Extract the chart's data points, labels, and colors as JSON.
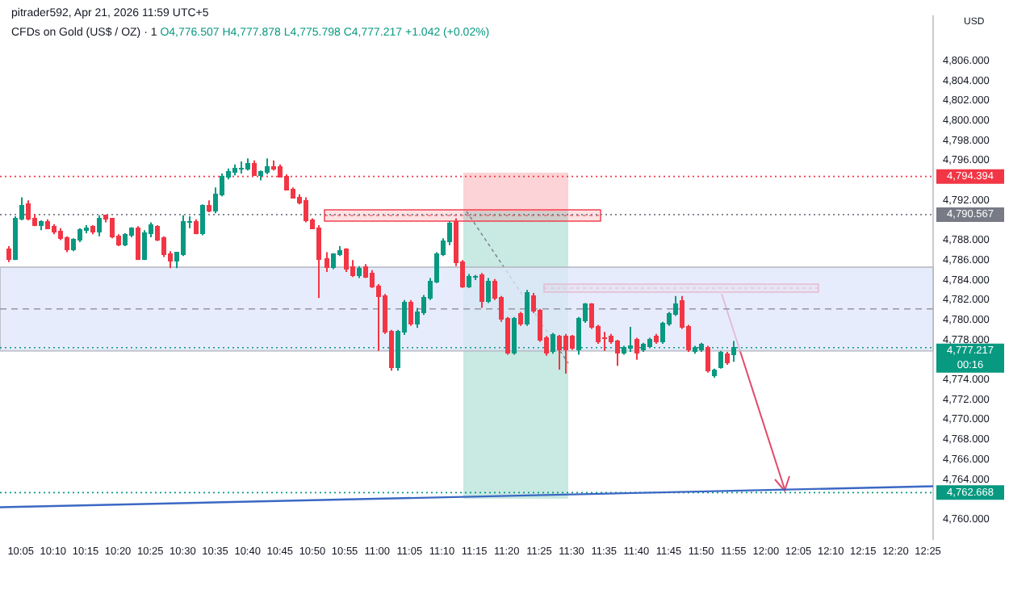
{
  "chart_data": {
    "type": "candlestick",
    "title": "CFDs on Gold (US$ / OZ) · 1",
    "subtitle": "pitrader592, Apr 21, 2026 11:59 UTC+5",
    "ylabel": "USD",
    "annotations": [
      "O4,776.507 H4,777.878 L4,775.798 C4,777.217 +1.042 (+0.02%)"
    ],
    "x": [
      10.05,
      10.0667,
      10.0833,
      10.1,
      10.1167,
      10.1333,
      10.15,
      10.1667,
      10.1833,
      10.2,
      10.2167,
      10.2333,
      10.25,
      10.2667,
      10.2833,
      10.3,
      10.3167,
      10.3333,
      10.35,
      10.3667,
      10.3833,
      10.4,
      10.4167,
      10.4333,
      10.45,
      10.4667,
      10.4833,
      10.5,
      10.5167,
      10.5333,
      10.55,
      10.5667,
      10.5833,
      10.6,
      10.6167,
      10.6333,
      10.65,
      10.6667,
      10.6833,
      10.7,
      10.7167,
      10.7333,
      10.75,
      10.7667,
      10.7833,
      10.8,
      10.8167,
      10.8333,
      10.85,
      10.8667,
      10.8833,
      10.9,
      10.9167,
      10.9333,
      10.95,
      10.9667,
      10.9833,
      11,
      11.0167,
      11.0333,
      11.05,
      11.0667,
      11.0833,
      11.1,
      11.1167,
      11.1333,
      11.15,
      11.1667,
      11.1833,
      11.2,
      11.2167,
      11.2333,
      11.25,
      11.2667,
      11.2833,
      11.3,
      11.3167,
      11.3333,
      11.35,
      11.3667,
      11.3833,
      11.4,
      11.4167,
      11.4333,
      11.45,
      11.4667,
      11.4833,
      11.5,
      11.5167,
      11.5333,
      11.55,
      11.5667,
      11.5833,
      11.6,
      11.6167,
      11.6333,
      11.65,
      11.6667,
      11.6833,
      11.7,
      11.7167,
      11.7333,
      11.75,
      11.7667,
      11.7833,
      11.8,
      11.8167,
      11.8333,
      11.85,
      11.8667,
      11.8833,
      11.9,
      11.9167
    ],
    "ohlc": [
      [
        4787.1,
        4787.4,
        4785.8,
        4786.1
      ],
      [
        4786.1,
        4790.4,
        4786.0,
        4790.2
      ],
      [
        4790.2,
        4792.3,
        4790.0,
        4791.5
      ],
      [
        4791.6,
        4792.0,
        4790.0,
        4790.2
      ],
      [
        4790.2,
        4790.6,
        4789.4,
        4789.5
      ],
      [
        4789.5,
        4790.0,
        4789.0,
        4789.9
      ],
      [
        4789.9,
        4790.1,
        4789.1,
        4789.2
      ],
      [
        4789.3,
        4789.6,
        4788.6,
        4788.9
      ],
      [
        4788.9,
        4789.2,
        4788.0,
        4788.2
      ],
      [
        4788.2,
        4788.4,
        4786.8,
        4787.0
      ],
      [
        4787.0,
        4788.2,
        4786.9,
        4788.0
      ],
      [
        4788.0,
        4789.2,
        4787.8,
        4789.0
      ],
      [
        4789.0,
        4789.5,
        4788.7,
        4789.2
      ],
      [
        4789.4,
        4789.5,
        4788.6,
        4788.8
      ],
      [
        4788.8,
        4790.5,
        4788.4,
        4790.2
      ],
      [
        4790.4,
        4790.5,
        4789.8,
        4790.1
      ],
      [
        4790.1,
        4790.2,
        4788.2,
        4788.4
      ],
      [
        4788.4,
        4788.6,
        4787.4,
        4787.6
      ],
      [
        4787.6,
        4788.7,
        4787.4,
        4788.5
      ],
      [
        4788.5,
        4789.3,
        4788.3,
        4789.2
      ],
      [
        4789.2,
        4789.4,
        4786.0,
        4786.1
      ],
      [
        4786.1,
        4789.0,
        4786.0,
        4788.7
      ],
      [
        4788.7,
        4789.8,
        4788.3,
        4789.5
      ],
      [
        4789.3,
        4789.5,
        4787.9,
        4788.1
      ],
      [
        4788.2,
        4788.4,
        4786.3,
        4786.6
      ],
      [
        4786.6,
        4786.9,
        4785.2,
        4786.0
      ],
      [
        4786.0,
        4786.8,
        4785.2,
        4786.7
      ],
      [
        4786.6,
        4790.5,
        4786.4,
        4789.9
      ],
      [
        4789.8,
        4790.4,
        4789.2,
        4789.9
      ],
      [
        4789.9,
        4790.1,
        4788.6,
        4788.7
      ],
      [
        4788.7,
        4791.6,
        4788.5,
        4791.5
      ],
      [
        4791.5,
        4792.0,
        4790.8,
        4790.9
      ],
      [
        4791.0,
        4793.3,
        4790.7,
        4792.6
      ],
      [
        4792.6,
        4794.7,
        4792.4,
        4794.4
      ],
      [
        4794.4,
        4795.2,
        4794.1,
        4794.8
      ],
      [
        4794.8,
        4795.6,
        4794.5,
        4795.1
      ],
      [
        4795.1,
        4795.9,
        4794.7,
        4795.2
      ],
      [
        4795.2,
        4796.2,
        4795.0,
        4795.7
      ],
      [
        4795.6,
        4796.0,
        4794.5,
        4794.6
      ],
      [
        4794.6,
        4795.0,
        4794.0,
        4794.8
      ],
      [
        4794.8,
        4796.2,
        4794.6,
        4795.3
      ],
      [
        4795.3,
        4796.0,
        4795.0,
        4795.2
      ],
      [
        4795.3,
        4795.6,
        4794.3,
        4794.4
      ],
      [
        4794.4,
        4794.6,
        4793.0,
        4793.1
      ],
      [
        4793.1,
        4793.3,
        4792.2,
        4792.3
      ],
      [
        4792.3,
        4792.6,
        4791.6,
        4791.8
      ],
      [
        4792.0,
        4792.3,
        4789.8,
        4790.0
      ],
      [
        4790.0,
        4790.2,
        4789.1,
        4789.2
      ],
      [
        4789.2,
        4789.5,
        4782.2,
        4786.1
      ],
      [
        4786.1,
        4786.8,
        4784.8,
        4785.3
      ],
      [
        4785.3,
        4786.7,
        4785.1,
        4786.6
      ],
      [
        4786.6,
        4787.4,
        4786.4,
        4786.9
      ],
      [
        4787.0,
        4787.2,
        4784.8,
        4785.2
      ],
      [
        4785.3,
        4786.0,
        4784.3,
        4784.5
      ],
      [
        4784.5,
        4785.4,
        4784.2,
        4785.2
      ],
      [
        4785.3,
        4785.6,
        4784.2,
        4784.4
      ],
      [
        4784.7,
        4785.0,
        4783.2,
        4783.4
      ],
      [
        4783.4,
        4783.6,
        4776.9,
        4782.4
      ],
      [
        4782.4,
        4782.6,
        4778.6,
        4778.8
      ],
      [
        4778.8,
        4779.0,
        4774.9,
        4775.2
      ],
      [
        4775.2,
        4779.0,
        4774.9,
        4778.8
      ],
      [
        4778.8,
        4782.0,
        4778.5,
        4781.7
      ],
      [
        4781.7,
        4782.0,
        4779.4,
        4779.6
      ],
      [
        4779.6,
        4781.2,
        4779.2,
        4780.7
      ],
      [
        4780.7,
        4782.5,
        4780.5,
        4782.2
      ],
      [
        4782.2,
        4784.2,
        4782.0,
        4783.9
      ],
      [
        4783.9,
        4786.8,
        4783.7,
        4786.6
      ],
      [
        4786.6,
        4788.2,
        4786.4,
        4787.9
      ],
      [
        4787.9,
        4789.9,
        4787.5,
        4789.7
      ],
      [
        4789.9,
        4790.2,
        4785.4,
        4785.8
      ],
      [
        4785.8,
        4786.0,
        4783.2,
        4783.4
      ],
      [
        4783.4,
        4784.6,
        4783.2,
        4784.3
      ],
      [
        4784.3,
        4784.5,
        4784.0,
        4784.4
      ],
      [
        4784.5,
        4784.7,
        4781.2,
        4781.9
      ],
      [
        4781.9,
        4784.2,
        4781.7,
        4783.9
      ],
      [
        4783.9,
        4784.1,
        4782.0,
        4782.2
      ],
      [
        4782.2,
        4782.4,
        4779.8,
        4780.1
      ],
      [
        4780.1,
        4780.3,
        4776.5,
        4776.7
      ],
      [
        4776.7,
        4780.3,
        4776.5,
        4780.1
      ],
      [
        4780.6,
        4780.8,
        4779.4,
        4779.6
      ],
      [
        4779.6,
        4783.0,
        4779.4,
        4782.7
      ],
      [
        4782.4,
        4782.7,
        4780.7,
        4780.9
      ],
      [
        4780.9,
        4781.1,
        4777.8,
        4778.0
      ],
      [
        4778.1,
        4778.4,
        4776.4,
        4776.7
      ],
      [
        4776.8,
        4778.7,
        4776.6,
        4778.5
      ],
      [
        4778.3,
        4778.5,
        4775.0,
        4777.0
      ],
      [
        4778.3,
        4778.6,
        4774.6,
        4777.0
      ],
      [
        4778.3,
        4778.5,
        4777.0,
        4777.2
      ],
      [
        4777.0,
        4780.3,
        4776.5,
        4780.1
      ],
      [
        4779.9,
        4781.7,
        4779.7,
        4781.5
      ],
      [
        4781.5,
        4781.7,
        4779.1,
        4779.3
      ],
      [
        4779.3,
        4779.5,
        4777.6,
        4777.8
      ],
      [
        4778.2,
        4778.8,
        4776.9,
        4778.1
      ],
      [
        4778.4,
        4778.6,
        4777.6,
        4777.8
      ],
      [
        4777.8,
        4778.0,
        4775.4,
        4776.7
      ],
      [
        4776.7,
        4777.4,
        4776.5,
        4777.2
      ],
      [
        4777.2,
        4779.3,
        4776.8,
        4777.4
      ],
      [
        4778.0,
        4778.2,
        4776.0,
        4776.7
      ],
      [
        4777.0,
        4777.7,
        4776.8,
        4777.5
      ],
      [
        4777.4,
        4778.2,
        4777.2,
        4778.0
      ],
      [
        4778.4,
        4778.6,
        4777.6,
        4777.8
      ],
      [
        4777.8,
        4779.8,
        4777.6,
        4779.6
      ],
      [
        4779.6,
        4780.8,
        4779.4,
        4780.6
      ],
      [
        4780.6,
        4782.4,
        4780.4,
        4781.5
      ],
      [
        4781.9,
        4782.4,
        4779.1,
        4779.3
      ],
      [
        4779.3,
        4779.5,
        4776.8,
        4777.0
      ],
      [
        4776.8,
        4777.4,
        4776.6,
        4777.2
      ],
      [
        4777.0,
        4777.7,
        4776.8,
        4777.5
      ],
      [
        4777.2,
        4777.4,
        4774.7,
        4774.9
      ],
      [
        4774.4,
        4775.1,
        4774.2,
        4774.9
      ],
      [
        4775.3,
        4776.9,
        4775.1,
        4776.7
      ],
      [
        4776.5,
        4776.8,
        4775.5,
        4775.7
      ],
      [
        4776.507,
        4777.878,
        4775.798,
        4777.217
      ]
    ],
    "series": [
      {
        "type": "line",
        "color": "#3b68c4",
        "x": [
          10.03,
          12.43
        ],
        "values": [
          4761.2,
          4763.3
        ]
      }
    ],
    "xlim": [
      10.03,
      12.43
    ],
    "xticks": [
      {
        "value": 10.0833,
        "label": "10:05"
      },
      {
        "value": 10.1667,
        "label": "10:10"
      },
      {
        "value": 10.25,
        "label": "10:15"
      },
      {
        "value": 10.3333,
        "label": "10:20"
      },
      {
        "value": 10.4167,
        "label": "10:25"
      },
      {
        "value": 10.5,
        "label": "10:30"
      },
      {
        "value": 10.5833,
        "label": "10:35"
      },
      {
        "value": 10.6667,
        "label": "10:40"
      },
      {
        "value": 10.75,
        "label": "10:45"
      },
      {
        "value": 10.8333,
        "label": "10:50"
      },
      {
        "value": 10.9167,
        "label": "10:55"
      },
      {
        "value": 11,
        "label": "11:00"
      },
      {
        "value": 11.0833,
        "label": "11:05"
      },
      {
        "value": 11.1667,
        "label": "11:10"
      },
      {
        "value": 11.25,
        "label": "11:15"
      },
      {
        "value": 11.3333,
        "label": "11:20"
      },
      {
        "value": 11.4167,
        "label": "11:25"
      },
      {
        "value": 11.5,
        "label": "11:30"
      },
      {
        "value": 11.5833,
        "label": "11:35"
      },
      {
        "value": 11.6667,
        "label": "11:40"
      },
      {
        "value": 11.75,
        "label": "11:45"
      },
      {
        "value": 11.8333,
        "label": "11:50"
      },
      {
        "value": 11.9167,
        "label": "11:55"
      },
      {
        "value": 12,
        "label": "12:00"
      },
      {
        "value": 12.0833,
        "label": "12:05"
      },
      {
        "value": 12.1667,
        "label": "12:10"
      },
      {
        "value": 12.25,
        "label": "12:15"
      },
      {
        "value": 12.3333,
        "label": "12:20"
      },
      {
        "value": 12.4167,
        "label": "12:25"
      }
    ],
    "ylim": [
      4758,
      4810.5
    ],
    "yticks": [
      {
        "value": 4760,
        "label": "4,760.000"
      },
      {
        "value": 4764,
        "label": "4,764.000"
      },
      {
        "value": 4766,
        "label": "4,766.000"
      },
      {
        "value": 4768,
        "label": "4,768.000"
      },
      {
        "value": 4770,
        "label": "4,770.000"
      },
      {
        "value": 4772,
        "label": "4,772.000"
      },
      {
        "value": 4774,
        "label": "4,774.000"
      },
      {
        "value": 4778,
        "label": "4,778.000"
      },
      {
        "value": 4780,
        "label": "4,780.000"
      },
      {
        "value": 4782,
        "label": "4,782.000"
      },
      {
        "value": 4784,
        "label": "4,784.000"
      },
      {
        "value": 4786,
        "label": "4,786.000"
      },
      {
        "value": 4788,
        "label": "4,788.000"
      },
      {
        "value": 4792,
        "label": "4,792.000"
      },
      {
        "value": 4796,
        "label": "4,796.000"
      },
      {
        "value": 4798,
        "label": "4,798.000"
      },
      {
        "value": 4800,
        "label": "4,800.000"
      },
      {
        "value": 4802,
        "label": "4,802.000"
      },
      {
        "value": 4804,
        "label": "4,804.000"
      },
      {
        "value": 4806,
        "label": "4,806.000"
      }
    ],
    "bands": [
      {
        "axis": "y",
        "from": 4776.9,
        "to": 4785.3,
        "color": "#dfe6fb"
      }
    ],
    "ref_lines": [
      {
        "axis": "y",
        "value": 4781.1,
        "color": "#9598a1",
        "line_style": "dashed"
      },
      {
        "axis": "y",
        "value": 4794.394,
        "label": "4,794.394",
        "color": "#f23645",
        "line_style": "dotted"
      },
      {
        "axis": "y",
        "value": 4790.567,
        "label": "4,790.567",
        "color": "#787b86",
        "line_style": "dotted"
      },
      {
        "axis": "y",
        "value": 4777.217,
        "label": "4,777.217\n00:16",
        "color": "#089981",
        "line_style": "dotted"
      },
      {
        "axis": "y",
        "value": 4762.668,
        "label": "4,762.668",
        "color": "#089981",
        "line_style": "dotted"
      }
    ]
  }
}
